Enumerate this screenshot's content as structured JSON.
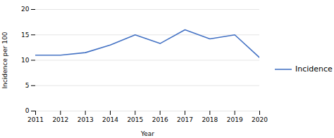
{
  "chart_data": {
    "type": "line",
    "x": [
      2011,
      2012,
      2013,
      2014,
      2015,
      2016,
      2017,
      2018,
      2019,
      2020
    ],
    "series": [
      {
        "name": "Incidence",
        "color": "#4472C4",
        "values": [
          11,
          11,
          11.5,
          13,
          15,
          13.3,
          16,
          14.2,
          15,
          10.5
        ]
      }
    ],
    "xlabel": "Year",
    "ylabel": "Incidence per 100",
    "xlim": [
      2011,
      2020
    ],
    "xticks": [
      2011,
      2012,
      2013,
      2014,
      2015,
      2016,
      2017,
      2018,
      2019,
      2020
    ],
    "ylim": [
      0,
      20
    ],
    "yticks": [
      0,
      5,
      10,
      15,
      20
    ],
    "grid": true,
    "legend": "right"
  }
}
